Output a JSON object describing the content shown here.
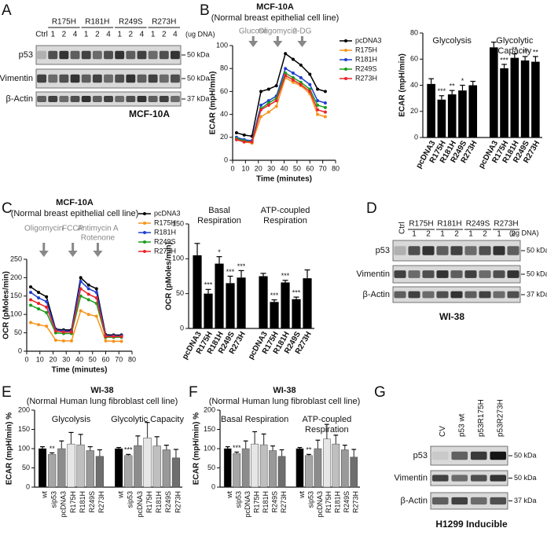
{
  "panels": [
    "A",
    "B",
    "C",
    "D",
    "E",
    "F",
    "G"
  ],
  "blots": [
    {
      "lanes": [
        "Ctrl"
      ],
      "groups": [
        {
          "label": "R175H",
          "lanes": [
            "1",
            "2",
            "4"
          ]
        },
        {
          "label": "R181H",
          "lanes": [
            "1",
            "2",
            "4"
          ]
        },
        {
          "label": "R249S",
          "lanes": [
            "1",
            "2",
            "4"
          ]
        },
        {
          "label": "R273H",
          "lanes": [
            "1",
            "2",
            "4"
          ]
        }
      ],
      "unit": "(ug DNA)",
      "rows": [
        {
          "protein": "p53",
          "marker": "50 kDa"
        },
        {
          "protein": "Vimentin",
          "marker": "50 kDa"
        },
        {
          "protein": "β-Actin",
          "marker": "37 kDa"
        }
      ],
      "caption": "MCF-10A"
    },
    {
      "lanes": [
        "Ctrl"
      ],
      "groups": [
        {
          "label": "R175H",
          "lanes": [
            "1",
            "2"
          ]
        },
        {
          "label": "R181H",
          "lanes": [
            "1",
            "2"
          ]
        },
        {
          "label": "R249S",
          "lanes": [
            "1",
            "2"
          ]
        },
        {
          "label": "R273H",
          "lanes": [
            "1",
            "2"
          ]
        }
      ],
      "unit": "(ug DNA)",
      "rows": [
        {
          "protein": "p53",
          "marker": "50 kDa"
        },
        {
          "protein": "Vimentin",
          "marker": "50 kDa"
        },
        {
          "protein": "β-Actin",
          "marker": "37 kDa"
        }
      ],
      "caption": "WI-38"
    },
    {
      "lanes": [
        "CV",
        "p53 wt",
        "p53R175H",
        "p53R273H"
      ],
      "rows": [
        {
          "protein": "p53",
          "marker": "50 kDa"
        },
        {
          "protein": "Vimentin",
          "marker": "50 kDa"
        },
        {
          "protein": "β-Actin",
          "marker": "37 kDa"
        }
      ],
      "caption": "H1299 Inducible"
    }
  ],
  "chart_data": [
    {
      "type": "line",
      "title": "MCF-10A",
      "subtitle": "(Normal breast epithelial cell line)",
      "x_label": "Time (minutes)",
      "y_label": "ECAR (mpH/min)",
      "x": [
        3,
        9,
        15,
        22,
        28,
        34,
        41,
        47,
        53,
        60,
        66,
        72
      ],
      "series": [
        {
          "name": "pcDNA3",
          "color": "#000000",
          "values": [
            24,
            22,
            21,
            60,
            62,
            65,
            93,
            88,
            83,
            75,
            62,
            60
          ]
        },
        {
          "name": "R175H",
          "color": "#f7941d",
          "values": [
            18,
            16,
            15,
            38,
            42,
            47,
            72,
            68,
            65,
            58,
            40,
            38
          ]
        },
        {
          "name": "R181H",
          "color": "#1f3fd1",
          "values": [
            20,
            18,
            17,
            48,
            52,
            56,
            80,
            76,
            72,
            66,
            52,
            50
          ]
        },
        {
          "name": "R249S",
          "color": "#1a9e1a",
          "values": [
            19,
            17,
            16,
            45,
            50,
            54,
            76,
            72,
            68,
            62,
            48,
            46
          ]
        },
        {
          "name": "R273H",
          "color": "#e8242a",
          "values": [
            18,
            16,
            16,
            44,
            48,
            52,
            74,
            70,
            66,
            60,
            44,
            42
          ]
        }
      ],
      "annotations": [
        {
          "lines": [
            "Glucose"
          ],
          "x": 16
        },
        {
          "lines": [
            "Oligomycin"
          ],
          "x": 35
        },
        {
          "lines": [
            "2-DG"
          ],
          "x": 54
        }
      ],
      "xlim": [
        0,
        80
      ],
      "xticks": [
        0,
        10,
        20,
        30,
        40,
        50,
        60,
        70,
        80
      ],
      "ylim": [
        0,
        100
      ],
      "yticks": [
        0,
        20,
        40,
        60,
        80,
        100
      ],
      "legend": "right",
      "grid": false
    },
    {
      "type": "bar",
      "y_label": "ECAR (mpH/min)",
      "groups": [
        "Glycolysis",
        "Glycolytic Capacity"
      ],
      "categories": [
        "pcDNA3",
        "R175H",
        "R181H",
        "R249S",
        "R273H",
        "pcDNA3",
        "R175H",
        "R181H",
        "R249S",
        "R273H"
      ],
      "values": [
        41,
        29,
        33,
        36,
        40,
        69,
        53,
        61,
        59,
        58
      ],
      "errors": [
        4,
        3,
        3,
        4,
        3,
        4,
        3,
        3,
        3,
        4
      ],
      "annotations": [
        null,
        "***",
        "**",
        "*",
        null,
        null,
        "***",
        "**",
        "**",
        "**"
      ],
      "color": "#000000",
      "ylim": [
        0,
        80
      ],
      "yticks": [
        0,
        20,
        40,
        60,
        80
      ],
      "grid": false
    },
    {
      "type": "line",
      "title": "MCF-10A",
      "subtitle": "(Normal breast epithelial cell line)",
      "x_label": "Time (minutes)",
      "y_label": "OCR (pMoles/min)",
      "x": [
        3,
        9,
        15,
        22,
        28,
        34,
        41,
        47,
        53,
        60,
        66,
        72
      ],
      "series": [
        {
          "name": "pcDNA3",
          "color": "#000000",
          "values": [
            175,
            160,
            148,
            60,
            58,
            58,
            200,
            180,
            170,
            45,
            44,
            44
          ]
        },
        {
          "name": "R175H",
          "color": "#f7941d",
          "values": [
            78,
            72,
            68,
            30,
            28,
            28,
            110,
            100,
            95,
            28,
            27,
            27
          ]
        },
        {
          "name": "R181H",
          "color": "#1f3fd1",
          "values": [
            160,
            145,
            135,
            58,
            55,
            55,
            190,
            170,
            160,
            42,
            42,
            42
          ]
        },
        {
          "name": "R249S",
          "color": "#1a9e1a",
          "values": [
            125,
            115,
            105,
            50,
            48,
            48,
            150,
            140,
            130,
            38,
            38,
            38
          ]
        },
        {
          "name": "R273H",
          "color": "#e8242a",
          "values": [
            140,
            130,
            120,
            55,
            52,
            52,
            170,
            155,
            145,
            40,
            40,
            40
          ]
        }
      ],
      "annotations": [
        {
          "lines": [
            "Oligomycin"
          ],
          "x": 13
        },
        {
          "lines": [
            "FCCP"
          ],
          "x": 35
        },
        {
          "lines": [
            "Antimycin A",
            "Rotenone"
          ],
          "x": 54
        }
      ],
      "xlim": [
        0,
        80
      ],
      "xticks": [
        0,
        10,
        20,
        30,
        40,
        50,
        60,
        70,
        80
      ],
      "ylim": [
        0,
        250
      ],
      "yticks": [
        0,
        50,
        100,
        150,
        200,
        250
      ],
      "legend": "right",
      "grid": false
    },
    {
      "type": "bar",
      "y_label": "OCR (pMoles/min)",
      "groups": [
        "Basal Respiration",
        "ATP-coupled Respiration"
      ],
      "categories": [
        "pcDNA3",
        "R175H",
        "R181H",
        "R249S",
        "R273H",
        "pcDNA3",
        "R175H",
        "R181H",
        "R249S",
        "R273H"
      ],
      "values": [
        105,
        50,
        93,
        65,
        73,
        75,
        38,
        66,
        42,
        72
      ],
      "errors": [
        17,
        6,
        10,
        10,
        10,
        4,
        3,
        3,
        3,
        12
      ],
      "annotations": [
        null,
        "***",
        "*",
        "***",
        "***",
        null,
        "***",
        "***",
        "***",
        null
      ],
      "color": "#000000",
      "ylim": [
        0,
        150
      ],
      "yticks": [
        0,
        50,
        100,
        150
      ],
      "grid": false
    },
    {
      "type": "bar",
      "title": "WI-38",
      "subtitle": "(Normal Human lung fibroblast cell line)",
      "y_label": "ECAR (mpH/min) %",
      "groups": [
        "Glycolysis",
        "Glycolytic Capacity"
      ],
      "categories": [
        "wt",
        "sip53",
        "pcDNA3",
        "R175H",
        "R181H",
        "R249S",
        "R273H",
        "wt",
        "sip53",
        "pcDNA3",
        "R175H",
        "R181H",
        "R249S",
        "R273H"
      ],
      "values": [
        100,
        85,
        100,
        112,
        110,
        95,
        80,
        100,
        82,
        108,
        128,
        107,
        97,
        76
      ],
      "errors": [
        5,
        4,
        20,
        30,
        27,
        10,
        17,
        3,
        3,
        25,
        40,
        24,
        12,
        22
      ],
      "annotations": [
        null,
        "**",
        null,
        null,
        null,
        null,
        null,
        null,
        "***",
        null,
        null,
        null,
        null,
        null
      ],
      "colors": [
        "#000000",
        "#a6a6a6",
        "#8c8c8c",
        "#e6e6e6",
        "#bfbfbf",
        "#999999",
        "#6e6e6e",
        "#000000",
        "#a6a6a6",
        "#8c8c8c",
        "#e6e6e6",
        "#bfbfbf",
        "#999999",
        "#6e6e6e"
      ],
      "ylim": [
        0,
        200
      ],
      "yticks": [
        0,
        50,
        100,
        150,
        200
      ],
      "grid": false
    },
    {
      "type": "bar",
      "title": "WI-38",
      "subtitle": "(Normal Human lung fibroblast cell line)",
      "y_label": "ECAR (mpH/min) %",
      "groups": [
        "Basal Respiration",
        "ATP-coupled Respiration"
      ],
      "categories": [
        "wt",
        "sip53",
        "pcDNA3",
        "R175H",
        "R181H",
        "R249S",
        "R273H",
        "wt",
        "sip53",
        "pcDNA3",
        "R175H",
        "R181H",
        "R249S",
        "R273H"
      ],
      "values": [
        100,
        87,
        100,
        112,
        110,
        95,
        80,
        100,
        82,
        100,
        125,
        112,
        97,
        78
      ],
      "errors": [
        5,
        4,
        20,
        32,
        28,
        12,
        17,
        3,
        3,
        22,
        38,
        23,
        12,
        20
      ],
      "annotations": [
        null,
        "***",
        null,
        null,
        null,
        null,
        null,
        null,
        "**",
        null,
        null,
        null,
        null,
        null
      ],
      "colors": [
        "#000000",
        "#a6a6a6",
        "#8c8c8c",
        "#e6e6e6",
        "#bfbfbf",
        "#999999",
        "#6e6e6e",
        "#000000",
        "#a6a6a6",
        "#8c8c8c",
        "#e6e6e6",
        "#bfbfbf",
        "#999999",
        "#6e6e6e"
      ],
      "ylim": [
        0,
        200
      ],
      "yticks": [
        0,
        50,
        100,
        150,
        200
      ],
      "grid": false
    }
  ]
}
